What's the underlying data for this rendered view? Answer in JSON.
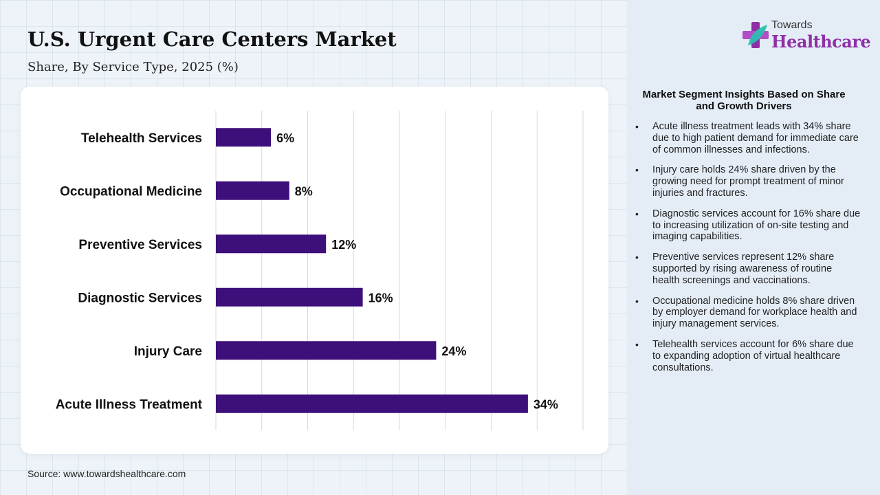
{
  "header": {
    "title": "U.S. Urgent Care Centers Market",
    "subtitle": "Share, By Service Type, 2025 (%)"
  },
  "chart_data": {
    "type": "bar",
    "orientation": "horizontal",
    "categories": [
      "Telehealth Services",
      "Occupational Medicine",
      "Preventive Services",
      "Diagnostic Services",
      "Injury Care",
      "Acute Illness Treatment"
    ],
    "values": [
      6,
      8,
      12,
      16,
      24,
      34
    ],
    "data_labels": [
      "6%",
      "8%",
      "12%",
      "16%",
      "24%",
      "34%"
    ],
    "xlim": [
      0,
      40
    ],
    "grid": "vertical",
    "bar_color": "#3d0f7a"
  },
  "footer": {
    "source": "Source: www.towardshealthcare.com"
  },
  "logo": {
    "top_text": "Towards",
    "main_text": "Healthcare",
    "icon": "cross-leaf-icon",
    "color": "#8e2fa8"
  },
  "insights": {
    "title": "Market Segment Insights Based on Share and Growth Drivers",
    "items": [
      "Acute illness treatment leads with 34% share due to high patient demand for immediate care of common illnesses and infections.",
      "Injury care holds 24% share driven by the growing need for prompt treatment of minor injuries and fractures.",
      "Diagnostic services account for 16% share due to increasing utilization of on-site testing and imaging capabilities.",
      "Preventive services represent 12% share supported by rising awareness of routine health screenings and vaccinations.",
      "Occupational medicine holds 8% share driven by employer demand for workplace health and injury management services.",
      "Telehealth services account for 6% share due to expanding adoption of virtual healthcare consultations."
    ]
  }
}
